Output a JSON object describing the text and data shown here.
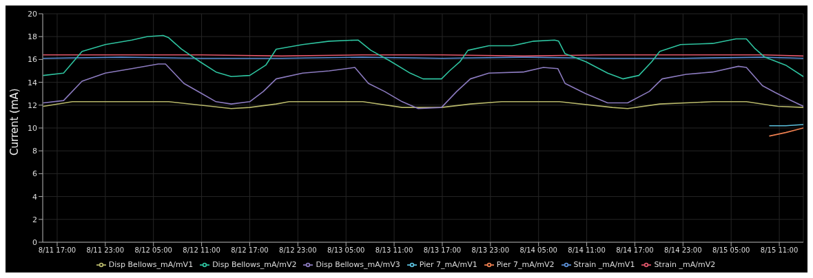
{
  "chart_data": {
    "type": "line",
    "ylabel": "Current (mA)",
    "xlim": [
      "--08-11T15:12",
      "--08-15T14:00"
    ],
    "xticks": [
      {
        "value": "--08-11T17:00",
        "label": "8/11 17:00"
      },
      {
        "value": "--08-11T23:00",
        "label": "8/11 23:00"
      },
      {
        "value": "--08-12T05:00",
        "label": "8/12 05:00"
      },
      {
        "value": "--08-12T11:00",
        "label": "8/12 11:00"
      },
      {
        "value": "--08-12T17:00",
        "label": "8/12 17:00"
      },
      {
        "value": "--08-12T23:00",
        "label": "8/12 23:00"
      },
      {
        "value": "--08-13T05:00",
        "label": "8/13 05:00"
      },
      {
        "value": "--08-13T11:00",
        "label": "8/13 11:00"
      },
      {
        "value": "--08-13T17:00",
        "label": "8/13 17:00"
      },
      {
        "value": "--08-13T23:00",
        "label": "8/13 23:00"
      },
      {
        "value": "--08-14T05:00",
        "label": "8/14 05:00"
      },
      {
        "value": "--08-14T11:00",
        "label": "8/14 11:00"
      },
      {
        "value": "--08-14T17:00",
        "label": "8/14 17:00"
      },
      {
        "value": "--08-14T23:00",
        "label": "8/14 23:00"
      },
      {
        "value": "--08-15T05:00",
        "label": "8/15 05:00"
      },
      {
        "value": "--08-15T11:00",
        "label": "8/15 11:00"
      }
    ],
    "ylim": [
      0,
      20
    ],
    "yticks": [
      0,
      2,
      4,
      6,
      8,
      10,
      12,
      14,
      16,
      18,
      20
    ],
    "grid": true,
    "legend": "bottom",
    "marker": "none",
    "line_style": "solid",
    "series": [
      {
        "name": "Strain _mA/mV1",
        "color": "#5b8fd6",
        "x": [
          "--08-11T15:18",
          "--08-12T01:00",
          "--08-12T11:00",
          "--08-12T21:00",
          "--08-13T07:00",
          "--08-13T17:00",
          "--08-14T03:00",
          "--08-14T13:00",
          "--08-14T23:00",
          "--08-15T09:00",
          "--08-15T14:00"
        ],
        "values": [
          16.1,
          16.2,
          16.1,
          16.1,
          16.2,
          16.1,
          16.2,
          16.1,
          16.1,
          16.2,
          16.1
        ]
      },
      {
        "name": "Strain _mA/mV2",
        "color": "#e0566a",
        "x": [
          "--08-11T15:18",
          "--08-12T01:00",
          "--08-12T11:00",
          "--08-12T21:00",
          "--08-13T07:00",
          "--08-13T17:00",
          "--08-14T03:00",
          "--08-14T13:00",
          "--08-14T23:00",
          "--08-15T09:00",
          "--08-15T14:00"
        ],
        "values": [
          16.4,
          16.4,
          16.4,
          16.3,
          16.4,
          16.4,
          16.3,
          16.4,
          16.4,
          16.4,
          16.3
        ]
      },
      {
        "name": "Disp Bellows_mA/mV1",
        "color": "#b8b86a",
        "x": [
          "--08-11T15:18",
          "--08-11T18:54",
          "--08-12T06:54",
          "--08-12T12:12",
          "--08-12T14:42",
          "--08-12T17:00",
          "--08-12T20:18",
          "--08-12T21:54",
          "--08-13T07:06",
          "--08-13T12:00",
          "--08-13T16:54",
          "--08-13T20:30",
          "--08-14T00:24",
          "--08-14T07:36",
          "--08-14T14:12",
          "--08-14T16:06",
          "--08-14T20:06",
          "--08-15T02:42",
          "--08-15T06:54",
          "--08-15T10:48",
          "--08-15T14:00"
        ],
        "values": [
          11.9,
          12.3,
          12.3,
          11.9,
          11.7,
          11.8,
          12.1,
          12.3,
          12.3,
          11.8,
          11.8,
          12.1,
          12.3,
          12.3,
          11.8,
          11.7,
          12.1,
          12.3,
          12.3,
          11.9,
          11.8
        ]
      },
      {
        "name": "Disp Bellows_mA/mV2",
        "color": "#2ec4a0",
        "x": [
          "--08-11T15:18",
          "--08-11T17:48",
          "--08-11T20:06",
          "--08-11T23:00",
          "--08-12T02:18",
          "--08-12T04:12",
          "--08-12T06:12",
          "--08-12T06:54",
          "--08-12T08:30",
          "--08-12T10:48",
          "--08-12T12:48",
          "--08-12T14:42",
          "--08-12T17:00",
          "--08-12T19:00",
          "--08-12T20:18",
          "--08-12T23:36",
          "--08-13T02:54",
          "--08-13T06:30",
          "--08-13T08:06",
          "--08-13T10:24",
          "--08-13T13:00",
          "--08-13T14:36",
          "--08-13T16:54",
          "--08-13T17:54",
          "--08-13T19:12",
          "--08-13T20:12",
          "--08-13T22:48",
          "--08-14T01:42",
          "--08-14T04:24",
          "--08-14T07:00",
          "--08-14T07:30",
          "--08-14T08:18",
          "--08-14T10:54",
          "--08-14T13:36",
          "--08-14T15:30",
          "--08-14T17:30",
          "--08-14T19:06",
          "--08-14T20:06",
          "--08-14T22:42",
          "--08-15T02:42",
          "--08-15T05:36",
          "--08-15T06:54",
          "--08-15T07:54",
          "--08-15T09:12",
          "--08-15T11:48",
          "--08-15T14:00"
        ],
        "values": [
          14.6,
          14.8,
          16.7,
          17.3,
          17.7,
          18.0,
          18.1,
          17.9,
          16.9,
          15.8,
          14.9,
          14.5,
          14.6,
          15.5,
          16.9,
          17.3,
          17.6,
          17.7,
          16.8,
          15.9,
          14.8,
          14.3,
          14.3,
          15.0,
          15.8,
          16.8,
          17.2,
          17.2,
          17.6,
          17.7,
          17.6,
          16.5,
          15.8,
          14.8,
          14.3,
          14.6,
          15.8,
          16.7,
          17.3,
          17.4,
          17.8,
          17.8,
          17.0,
          16.2,
          15.5,
          14.5
        ]
      },
      {
        "name": "Disp Bellows_mA/mV3",
        "color": "#8c7bc0",
        "x": [
          "--08-11T15:18",
          "--08-11T17:48",
          "--08-11T20:06",
          "--08-11T23:00",
          "--08-12T02:18",
          "--08-12T05:36",
          "--08-12T06:30",
          "--08-12T08:48",
          "--08-12T10:48",
          "--08-12T12:48",
          "--08-12T14:42",
          "--08-12T17:00",
          "--08-12T18:42",
          "--08-12T20:18",
          "--08-12T23:36",
          "--08-13T02:54",
          "--08-13T06:06",
          "--08-13T07:48",
          "--08-13T09:48",
          "--08-13T12:00",
          "--08-13T14:00",
          "--08-13T16:54",
          "--08-13T18:48",
          "--08-13T20:30",
          "--08-13T22:48",
          "--08-14T03:06",
          "--08-14T05:36",
          "--08-14T07:24",
          "--08-14T08:18",
          "--08-14T10:54",
          "--08-14T13:36",
          "--08-14T16:06",
          "--08-14T18:48",
          "--08-14T20:24",
          "--08-14T23:24",
          "--08-15T02:42",
          "--08-15T05:54",
          "--08-15T06:54",
          "--08-15T08:54",
          "--08-15T10:30",
          "--08-15T12:30",
          "--08-15T14:00"
        ],
        "values": [
          12.2,
          12.4,
          14.1,
          14.8,
          15.2,
          15.6,
          15.6,
          13.9,
          13.1,
          12.3,
          12.1,
          12.3,
          13.2,
          14.3,
          14.8,
          15.0,
          15.3,
          13.9,
          13.2,
          12.3,
          11.7,
          11.8,
          13.2,
          14.3,
          14.8,
          14.9,
          15.3,
          15.2,
          13.9,
          13.0,
          12.2,
          12.2,
          13.2,
          14.3,
          14.7,
          14.9,
          15.4,
          15.3,
          13.7,
          13.1,
          12.4,
          11.9
        ]
      },
      {
        "name": "Pier 7_mA/mV1",
        "color": "#5bc0de",
        "x": [
          "--08-15T09:48",
          "--08-15T11:48",
          "--08-15T14:00"
        ],
        "values": [
          10.2,
          10.2,
          10.3
        ]
      },
      {
        "name": "Pier 7_mA/mV2",
        "color": "#f08050",
        "x": [
          "--08-15T09:48",
          "--08-15T11:48",
          "--08-15T14:00"
        ],
        "values": [
          9.3,
          9.6,
          10.0
        ]
      }
    ]
  }
}
